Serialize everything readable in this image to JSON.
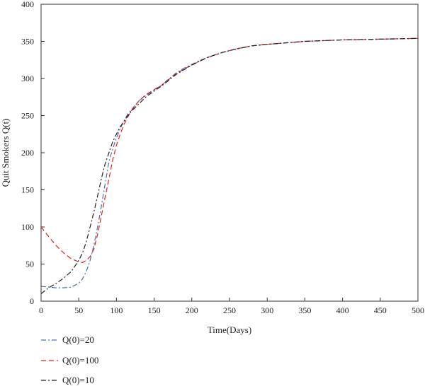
{
  "chart_data": {
    "type": "line",
    "xlabel": "Time(Days)",
    "ylabel": "Quit Smokers Q(t)",
    "xlim": [
      0,
      500
    ],
    "ylim": [
      0,
      400
    ],
    "xticks": [
      "0",
      "50",
      "100",
      "150",
      "200",
      "250",
      "300",
      "350",
      "400",
      "450",
      "500"
    ],
    "yticks": [
      "0",
      "50",
      "100",
      "150",
      "200",
      "250",
      "300",
      "350",
      "400"
    ],
    "grid": false,
    "legend_position": "bottom-left",
    "series": [
      {
        "name": "Q(0)=20",
        "color": "#4a6fb5",
        "dash": "dashdot",
        "x": [
          0,
          10,
          20,
          30,
          40,
          50,
          55,
          60,
          65,
          70,
          75,
          80,
          85,
          90,
          95,
          100,
          105,
          110,
          115,
          120,
          130,
          140,
          150,
          160,
          170,
          180,
          190,
          200,
          210,
          220,
          240,
          260,
          280,
          300,
          350,
          400,
          450,
          500
        ],
        "y": [
          20,
          19,
          18,
          18,
          19,
          24,
          30,
          40,
          55,
          75,
          100,
          128,
          158,
          188,
          205,
          220,
          232,
          243,
          252,
          258,
          270,
          278,
          284,
          291,
          300,
          308,
          314,
          319,
          324,
          328,
          335,
          340,
          344,
          346,
          350,
          352,
          353,
          354
        ]
      },
      {
        "name": "Q(0)=100",
        "color": "#e02020",
        "dash": "dashed",
        "x": [
          0,
          10,
          20,
          30,
          40,
          50,
          55,
          60,
          65,
          70,
          75,
          80,
          85,
          90,
          95,
          100,
          105,
          110,
          115,
          120,
          130,
          140,
          150,
          160,
          170,
          180,
          190,
          200,
          210,
          220,
          240,
          260,
          280,
          300,
          350,
          400,
          450,
          500
        ],
        "y": [
          100,
          87,
          75,
          65,
          57,
          53,
          52,
          55,
          60,
          70,
          90,
          115,
          140,
          165,
          190,
          210,
          225,
          238,
          248,
          257,
          270,
          279,
          285,
          291,
          299,
          307,
          313,
          318,
          323,
          328,
          335,
          340,
          344,
          346,
          350,
          352,
          353,
          354
        ]
      },
      {
        "name": "Q(0)=10",
        "color": "#222222",
        "dash": "dashdot",
        "x": [
          0,
          10,
          20,
          30,
          40,
          50,
          55,
          60,
          65,
          70,
          75,
          80,
          85,
          90,
          95,
          100,
          105,
          110,
          115,
          120,
          130,
          140,
          150,
          160,
          170,
          180,
          190,
          200,
          210,
          220,
          240,
          260,
          280,
          300,
          350,
          400,
          450,
          500
        ],
        "y": [
          10,
          18,
          24,
          31,
          40,
          55,
          65,
          80,
          100,
          120,
          142,
          165,
          185,
          200,
          215,
          225,
          235,
          242,
          250,
          256,
          266,
          276,
          283,
          290,
          298,
          306,
          312,
          318,
          323,
          328,
          335,
          340,
          344,
          346,
          350,
          352,
          353,
          354
        ]
      }
    ]
  }
}
